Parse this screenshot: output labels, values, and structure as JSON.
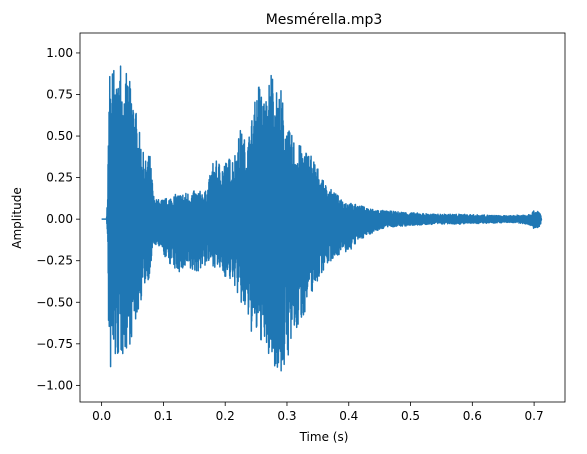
{
  "chart_data": {
    "type": "line",
    "title": "Mesmérella.mp3",
    "xlabel": "Time (s)",
    "ylabel": "Amplitude",
    "xlim": [
      -0.035,
      0.75
    ],
    "ylim": [
      -1.1,
      1.12
    ],
    "xticks": [
      0.0,
      0.1,
      0.2,
      0.3,
      0.4,
      0.5,
      0.6,
      0.7
    ],
    "xtick_labels": [
      "0.0",
      "0.1",
      "0.2",
      "0.3",
      "0.4",
      "0.5",
      "0.6",
      "0.7"
    ],
    "yticks": [
      1.0,
      0.75,
      0.5,
      0.25,
      0.0,
      -0.25,
      -0.5,
      -0.75,
      -1.0
    ],
    "ytick_labels": [
      "1.00",
      "0.75",
      "0.50",
      "0.25",
      "0.00",
      "−0.25",
      "−0.50",
      "−0.75",
      "−1.00"
    ],
    "grid": false,
    "series": [
      {
        "color": "#1f77b4",
        "duration": 0.712,
        "envelope_t": [
          0.0,
          0.008,
          0.01,
          0.012,
          0.015,
          0.02,
          0.025,
          0.03,
          0.035,
          0.04,
          0.05,
          0.06,
          0.07,
          0.078,
          0.085,
          0.1,
          0.12,
          0.15,
          0.17,
          0.18,
          0.2,
          0.215,
          0.225,
          0.235,
          0.245,
          0.255,
          0.265,
          0.275,
          0.285,
          0.29,
          0.3,
          0.32,
          0.34,
          0.36,
          0.38,
          0.4,
          0.42,
          0.44,
          0.46,
          0.5,
          0.54,
          0.58,
          0.62,
          0.66,
          0.69,
          0.7,
          0.705,
          0.71,
          0.712
        ],
        "envelope_top": [
          0.0,
          0.0,
          0.2,
          0.9,
          0.93,
          0.93,
          0.75,
          1.02,
          0.85,
          0.88,
          0.8,
          0.55,
          0.35,
          0.4,
          0.12,
          0.12,
          0.15,
          0.17,
          0.17,
          0.35,
          0.35,
          0.4,
          0.55,
          0.45,
          0.65,
          0.85,
          0.7,
          0.95,
          0.75,
          0.8,
          0.55,
          0.45,
          0.4,
          0.22,
          0.15,
          0.1,
          0.08,
          0.06,
          0.05,
          0.04,
          0.03,
          0.03,
          0.025,
          0.02,
          0.03,
          0.05,
          0.05,
          0.04,
          0.0
        ],
        "envelope_bottom": [
          0.0,
          0.0,
          -0.2,
          -0.95,
          -0.93,
          -0.9,
          -0.85,
          -0.85,
          -0.82,
          -0.8,
          -0.72,
          -0.55,
          -0.4,
          -0.35,
          -0.15,
          -0.22,
          -0.32,
          -0.33,
          -0.28,
          -0.28,
          -0.35,
          -0.4,
          -0.52,
          -0.6,
          -0.72,
          -0.72,
          -0.8,
          -0.88,
          -0.9,
          -0.98,
          -0.85,
          -0.65,
          -0.45,
          -0.3,
          -0.22,
          -0.2,
          -0.12,
          -0.08,
          -0.05,
          -0.04,
          -0.03,
          -0.03,
          -0.025,
          -0.02,
          -0.03,
          -0.06,
          -0.06,
          -0.05,
          0.0
        ]
      }
    ]
  }
}
